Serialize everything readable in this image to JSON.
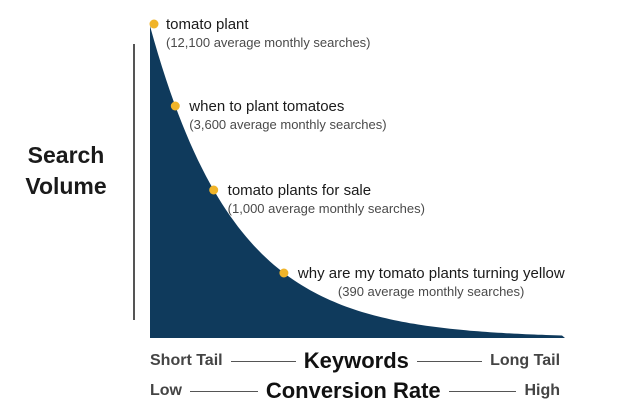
{
  "chart_data": {
    "type": "area",
    "ylabel_lines": [
      "Search",
      "Volume"
    ],
    "x_axis_rows": [
      {
        "left": "Short Tail",
        "center": "Keywords",
        "right": "Long Tail"
      },
      {
        "left": "Low",
        "center": "Conversion Rate",
        "right": "High"
      }
    ],
    "points": [
      {
        "keyword": "tomato plant",
        "searches": 12100,
        "volume_text": "(12,100 average monthly searches)"
      },
      {
        "keyword": "when to plant tomatoes",
        "searches": 3600,
        "volume_text": "(3,600 average monthly searches)"
      },
      {
        "keyword": "tomato plants for sale",
        "searches": 1000,
        "volume_text": "(1,000 average monthly searches)"
      },
      {
        "keyword": "why are my tomato plants turning yellow",
        "searches": 390,
        "volume_text": "(390 average monthly searches)"
      }
    ],
    "colors": {
      "area_fill": "#0f3a5c",
      "marker": "#f0b429",
      "text": "#1a1a1a"
    }
  }
}
